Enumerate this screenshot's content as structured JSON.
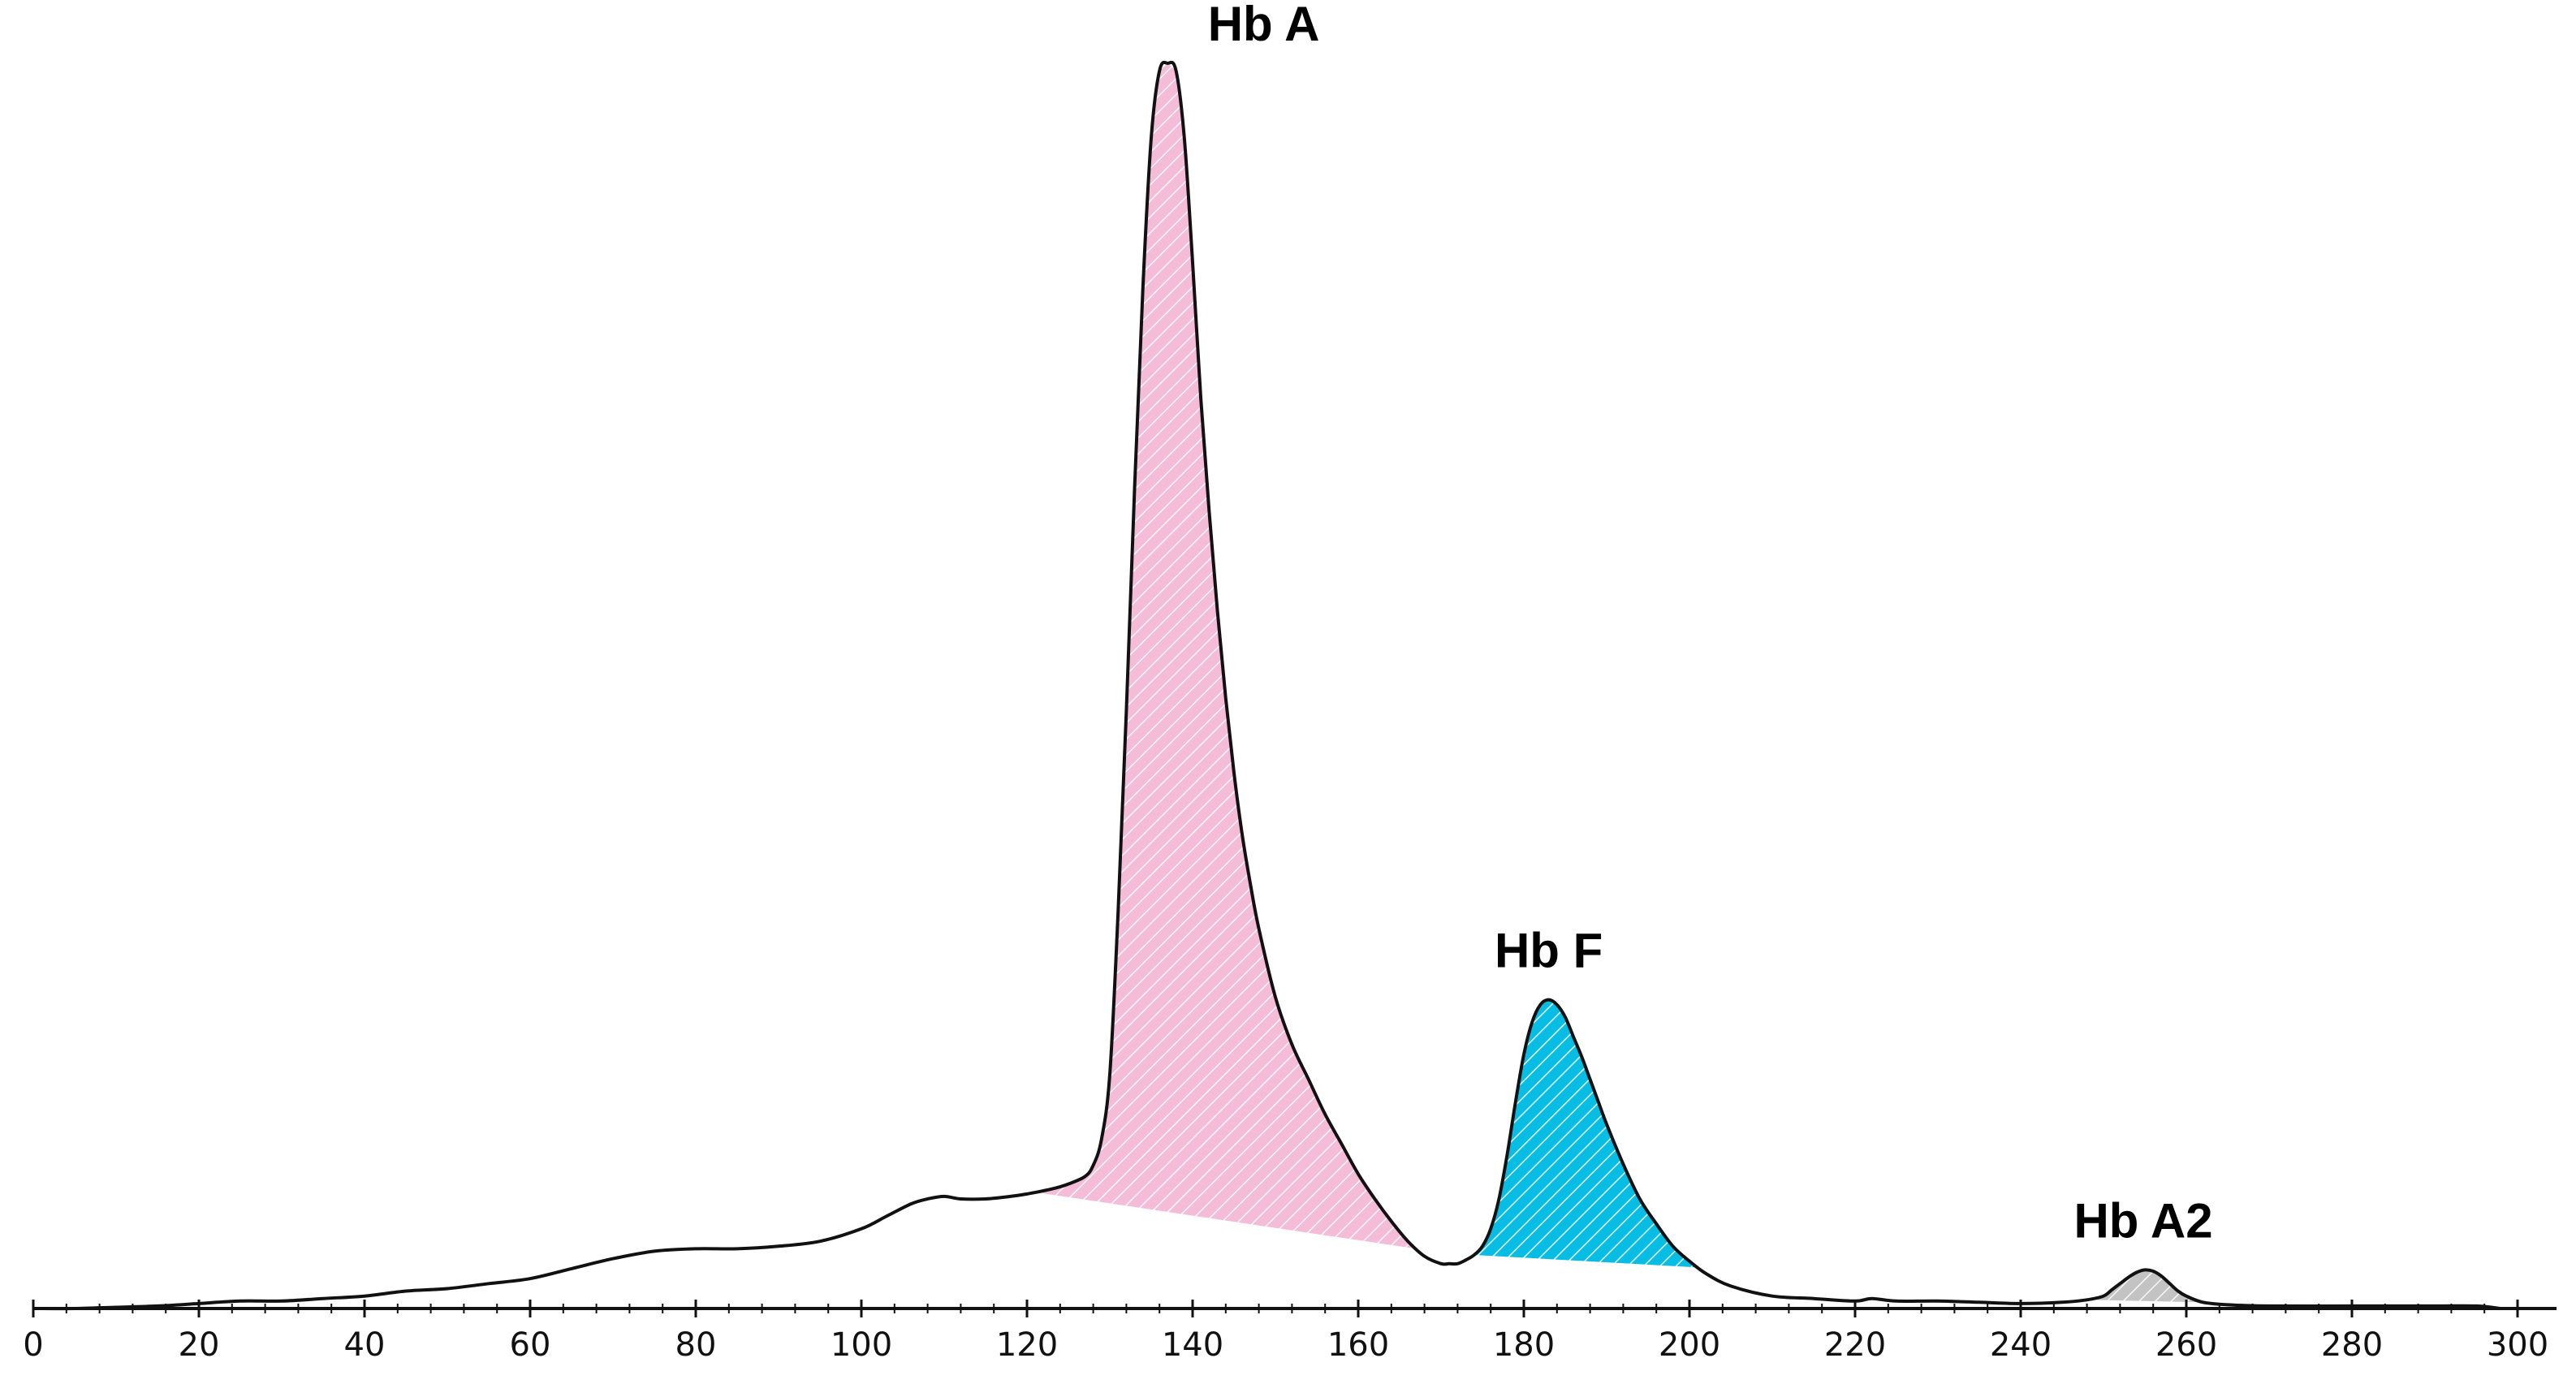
{
  "chart_data": {
    "type": "area",
    "title": "",
    "xlabel": "",
    "ylabel": "",
    "xlim": [
      0,
      300
    ],
    "ylim": [
      0,
      100
    ],
    "grid": false,
    "legend": "none",
    "x_ticks": [
      0,
      20,
      40,
      60,
      80,
      100,
      120,
      140,
      160,
      180,
      200,
      220,
      240,
      260,
      280,
      300
    ],
    "x_tick_labels": [
      "0",
      "20",
      "40",
      "60",
      "80",
      "100",
      "120",
      "140",
      "160",
      "180",
      "200",
      "220",
      "240",
      "260",
      "280",
      "300"
    ],
    "trace": {
      "x": [
        0,
        5,
        10,
        15,
        20,
        25,
        30,
        35,
        40,
        45,
        50,
        55,
        60,
        65,
        70,
        75,
        80,
        85,
        90,
        95,
        100,
        103,
        106,
        108,
        110,
        112,
        115,
        118,
        120,
        123,
        125,
        127,
        128,
        129,
        130,
        131,
        132,
        133,
        134,
        135,
        136,
        137,
        138,
        139,
        140,
        141,
        142,
        143,
        144,
        145,
        146,
        147,
        148,
        150,
        152,
        154,
        156,
        158,
        160,
        162,
        164,
        166,
        168,
        170,
        171,
        172,
        173,
        174,
        175,
        176,
        177,
        178,
        179,
        180,
        181,
        182,
        183,
        184,
        185,
        186,
        187,
        188,
        189,
        190,
        192,
        194,
        196,
        198,
        200,
        202,
        205,
        210,
        215,
        220,
        222,
        225,
        230,
        235,
        240,
        245,
        248,
        250,
        251,
        252,
        253,
        254,
        255,
        256,
        257,
        258,
        259,
        260,
        262,
        265,
        270,
        280,
        290,
        295,
        298
      ],
      "y": [
        0,
        0,
        0.1,
        0.2,
        0.4,
        0.6,
        0.6,
        0.8,
        1.0,
        1.4,
        1.6,
        2.0,
        2.4,
        3.2,
        4.0,
        4.6,
        4.8,
        4.8,
        5.0,
        5.4,
        6.4,
        7.4,
        8.4,
        8.8,
        9.0,
        8.8,
        8.8,
        9.0,
        9.2,
        9.6,
        10.0,
        10.6,
        11.5,
        13.6,
        18.8,
        31.8,
        48.0,
        66.0,
        82.0,
        94.0,
        99.4,
        100.0,
        99.4,
        94.0,
        84.0,
        73.0,
        64.0,
        56.0,
        49.0,
        43.0,
        38.0,
        34.0,
        30.5,
        25.0,
        21.2,
        18.4,
        15.6,
        13.2,
        10.8,
        8.8,
        7.0,
        5.4,
        4.2,
        3.6,
        3.6,
        3.6,
        3.9,
        4.3,
        5.0,
        6.4,
        8.8,
        12.4,
        16.6,
        20.4,
        23.0,
        24.4,
        24.8,
        24.4,
        23.4,
        21.8,
        20.2,
        18.4,
        16.6,
        14.8,
        11.6,
        8.8,
        6.8,
        5.0,
        3.8,
        2.8,
        1.8,
        1.0,
        0.8,
        0.6,
        0.8,
        0.6,
        0.6,
        0.5,
        0.4,
        0.5,
        0.7,
        1.0,
        1.5,
        2.0,
        2.5,
        2.9,
        3.1,
        3.0,
        2.6,
        2.0,
        1.4,
        1.0,
        0.5,
        0.3,
        0.2,
        0.2,
        0.2,
        0.2,
        0
      ]
    },
    "peaks": [
      {
        "label": "Hb A",
        "apex_x": 138.5,
        "apex_y": 100.0,
        "x_start": 121,
        "x_end": 167,
        "color": "#f5bcd8"
      },
      {
        "label": "Hb F",
        "apex_x": 183,
        "apex_y": 24.8,
        "x_start": 174,
        "x_end": 201,
        "color": "#08bde4"
      },
      {
        "label": "Hb A2",
        "apex_x": 255,
        "apex_y": 3.1,
        "x_start": 248,
        "x_end": 262,
        "color": "#c3c3c3"
      }
    ]
  }
}
